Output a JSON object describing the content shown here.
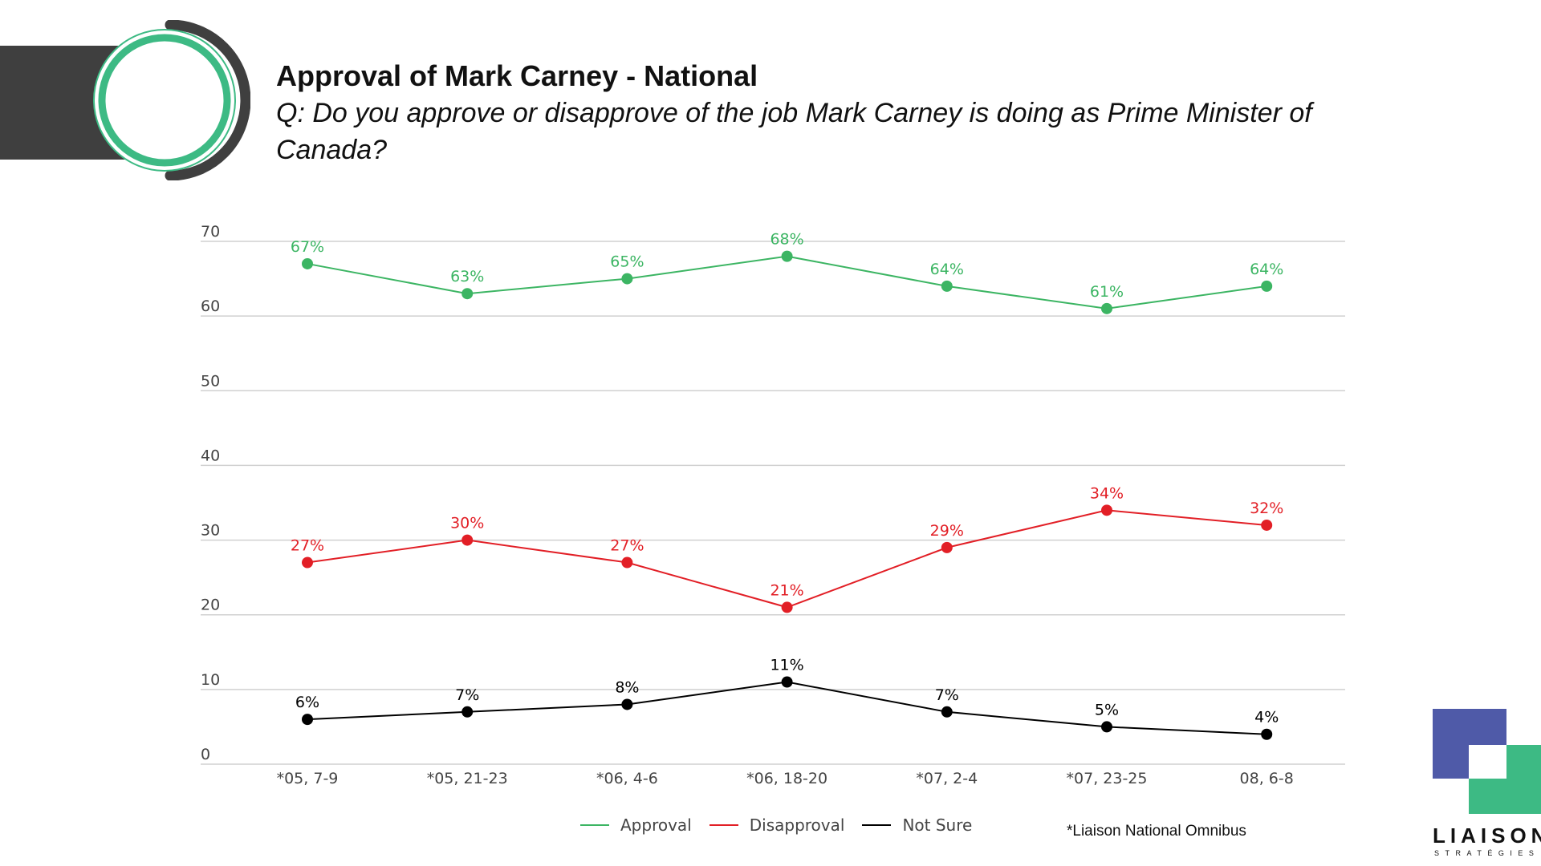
{
  "header": {
    "title": "Approval of Mark Carney - National",
    "question": "Q: Do you approve or disapprove of the job Mark Carney is doing as Prime Minister of Canada?"
  },
  "chart_data": {
    "type": "line",
    "title": "Approval of Mark Carney - National",
    "subtitle": "Q: Do you approve or disapprove of the job Mark Carney is doing as Prime Minister of Canada?",
    "categories": [
      "*05, 7-9",
      "*05, 21-23",
      "*06, 4-6",
      "*06, 18-20",
      "*07, 2-4",
      "*07, 23-25",
      "08, 6-8"
    ],
    "ylim": [
      0,
      70
    ],
    "yticks": [
      "0",
      "10",
      "20",
      "30",
      "40",
      "50",
      "60",
      "70"
    ],
    "grid": true,
    "legend_position": "bottom",
    "series": [
      {
        "name": "Approval",
        "color": "#3cb563",
        "values": [
          67,
          63,
          65,
          68,
          64,
          61,
          64
        ],
        "labels": [
          "67%",
          "63%",
          "65%",
          "68%",
          "64%",
          "61%",
          "64%"
        ]
      },
      {
        "name": "Disapproval",
        "color": "#e21f26",
        "values": [
          27,
          30,
          27,
          21,
          29,
          34,
          32
        ],
        "labels": [
          "27%",
          "30%",
          "27%",
          "21%",
          "29%",
          "34%",
          "32%"
        ]
      },
      {
        "name": "Not Sure",
        "color": "#000000",
        "values": [
          6,
          7,
          8,
          11,
          7,
          5,
          4
        ],
        "labels": [
          "6%",
          "7%",
          "8%",
          "11%",
          "7%",
          "5%",
          "4%"
        ]
      }
    ]
  },
  "footnote": "*Liaison National Omnibus",
  "logo": {
    "word": "LIAISON",
    "sub": "STRATÉGIES",
    "colors": {
      "blue": "#4f5aa8",
      "green": "#3dba84"
    }
  },
  "decor": {
    "ring_color": "#3dba84",
    "dark_color": "#3f3f3f"
  }
}
